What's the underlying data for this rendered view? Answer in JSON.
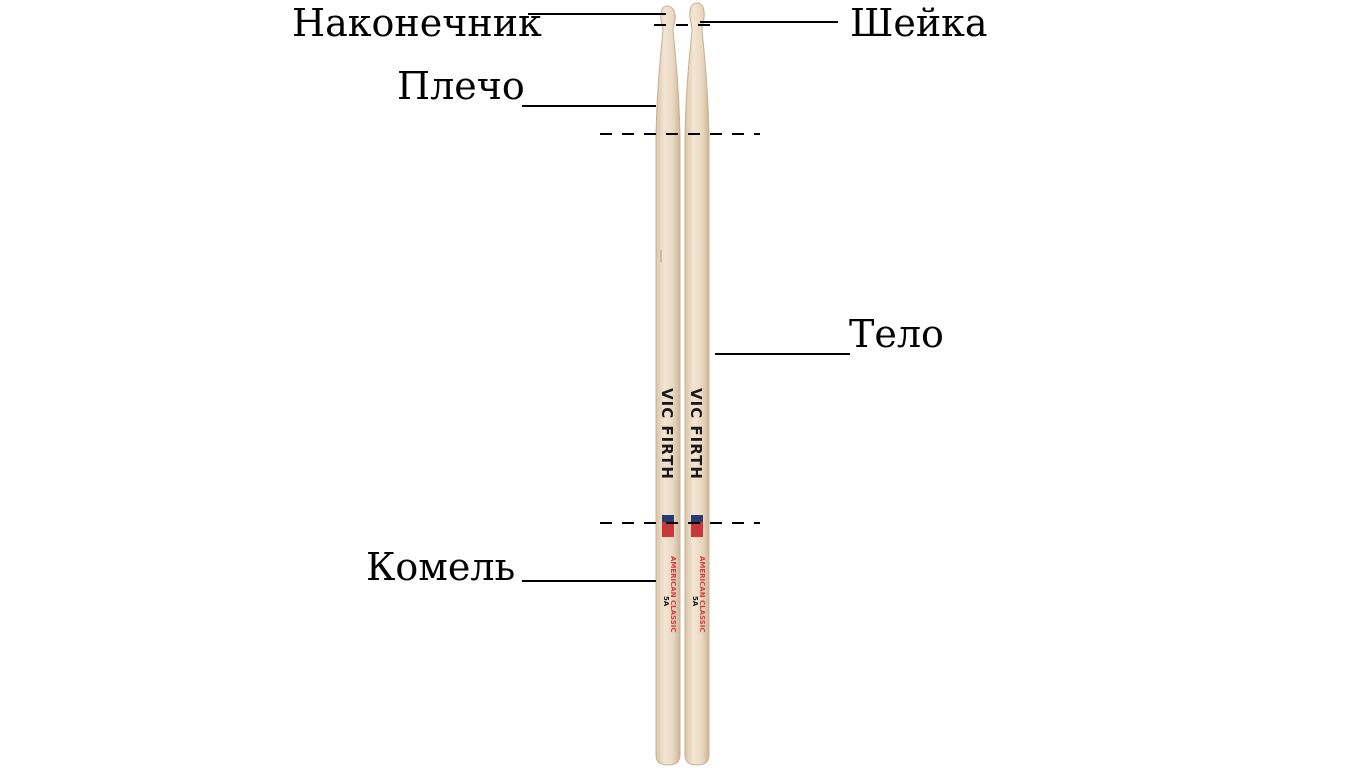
{
  "diagram": {
    "labels": {
      "tip": "Наконечник",
      "neck": "Шейка",
      "shoulder": "Плечо",
      "body": "Тело",
      "butt": "Комель"
    },
    "stick_branding": {
      "brand": "VIC FIRTH",
      "series": "AMERICAN CLASSIC",
      "model": "5A"
    }
  },
  "colors": {
    "wood": "#ecdcc6",
    "wood_edge": "#c9b193",
    "leader_line": "#000000",
    "brand_text": "#1a1a1a",
    "series_text": "#d63a3a"
  }
}
